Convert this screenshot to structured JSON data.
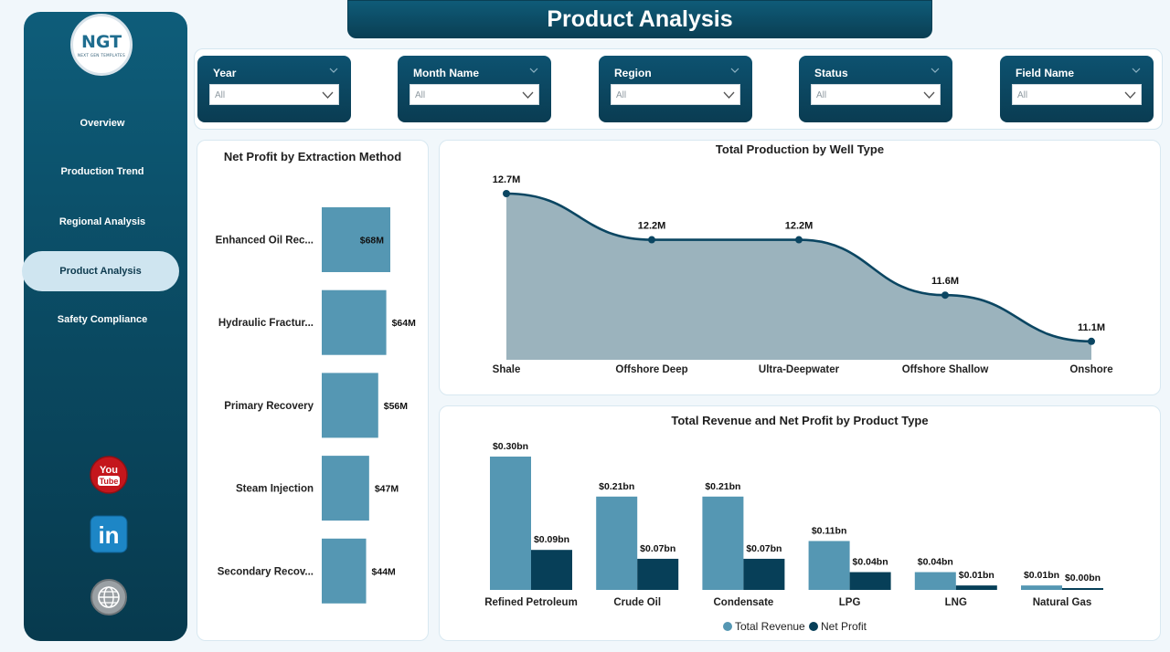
{
  "logo": {
    "mark": "NGT",
    "tagline": "NEXT GEN TEMPLATES"
  },
  "nav": [
    {
      "label": "Overview",
      "active": false
    },
    {
      "label": "Production Trend",
      "active": false
    },
    {
      "label": "Regional Analysis",
      "active": false
    },
    {
      "label": "Product Analysis",
      "active": true
    },
    {
      "label": "Safety Compliance",
      "active": false
    }
  ],
  "social": [
    {
      "icon": "youtube-icon",
      "label": "You Tube"
    },
    {
      "icon": "linkedin-icon",
      "label": "in"
    },
    {
      "icon": "website-icon",
      "label": "www"
    }
  ],
  "page_title": "Product Analysis",
  "filters": [
    {
      "label": "Year",
      "value": "All"
    },
    {
      "label": "Month Name",
      "value": "All"
    },
    {
      "label": "Region",
      "value": "All"
    },
    {
      "label": "Status",
      "value": "All"
    },
    {
      "label": "Field Name",
      "value": "All"
    }
  ],
  "colors": {
    "accent": "#5597b3",
    "dark": "#073f58",
    "area": "#9bb3bd",
    "line": "#0b4662"
  },
  "chart_data": [
    {
      "type": "bar",
      "orientation": "horizontal",
      "title": "Net Profit by Extraction Method",
      "categories": [
        "Enhanced Oil Rec...",
        "Hydraulic Fractur...",
        "Primary Recovery",
        "Steam Injection",
        "Secondary Recov..."
      ],
      "values": [
        68,
        64,
        56,
        47,
        44
      ],
      "labels": [
        "$68M",
        "$64M",
        "$56M",
        "$47M",
        "$44M"
      ],
      "unit": "M"
    },
    {
      "type": "area",
      "title": "Total Production by Well Type",
      "categories": [
        "Shale",
        "Offshore Deep",
        "Ultra-Deepwater",
        "Offshore Shallow",
        "Onshore"
      ],
      "values": [
        12.7,
        12.2,
        12.2,
        11.6,
        11.1
      ],
      "labels": [
        "12.7M",
        "12.2M",
        "12.2M",
        "11.6M",
        "11.1M"
      ]
    },
    {
      "type": "bar",
      "title": "Total Revenue and Net Profit by Product Type",
      "categories": [
        "Refined Petroleum",
        "Crude Oil",
        "Condensate",
        "LPG",
        "LNG",
        "Natural Gas"
      ],
      "series": [
        {
          "name": "Total Revenue",
          "values": [
            0.3,
            0.21,
            0.21,
            0.11,
            0.04,
            0.01
          ],
          "labels": [
            "$0.30bn",
            "$0.21bn",
            "$0.21bn",
            "$0.11bn",
            "$0.04bn",
            "$0.01bn"
          ]
        },
        {
          "name": "Net Profit",
          "values": [
            0.09,
            0.07,
            0.07,
            0.04,
            0.01,
            0.0
          ],
          "labels": [
            "$0.09bn",
            "$0.07bn",
            "$0.07bn",
            "$0.04bn",
            "$0.01bn",
            "$0.00bn"
          ]
        }
      ],
      "legend": "bottom"
    }
  ]
}
